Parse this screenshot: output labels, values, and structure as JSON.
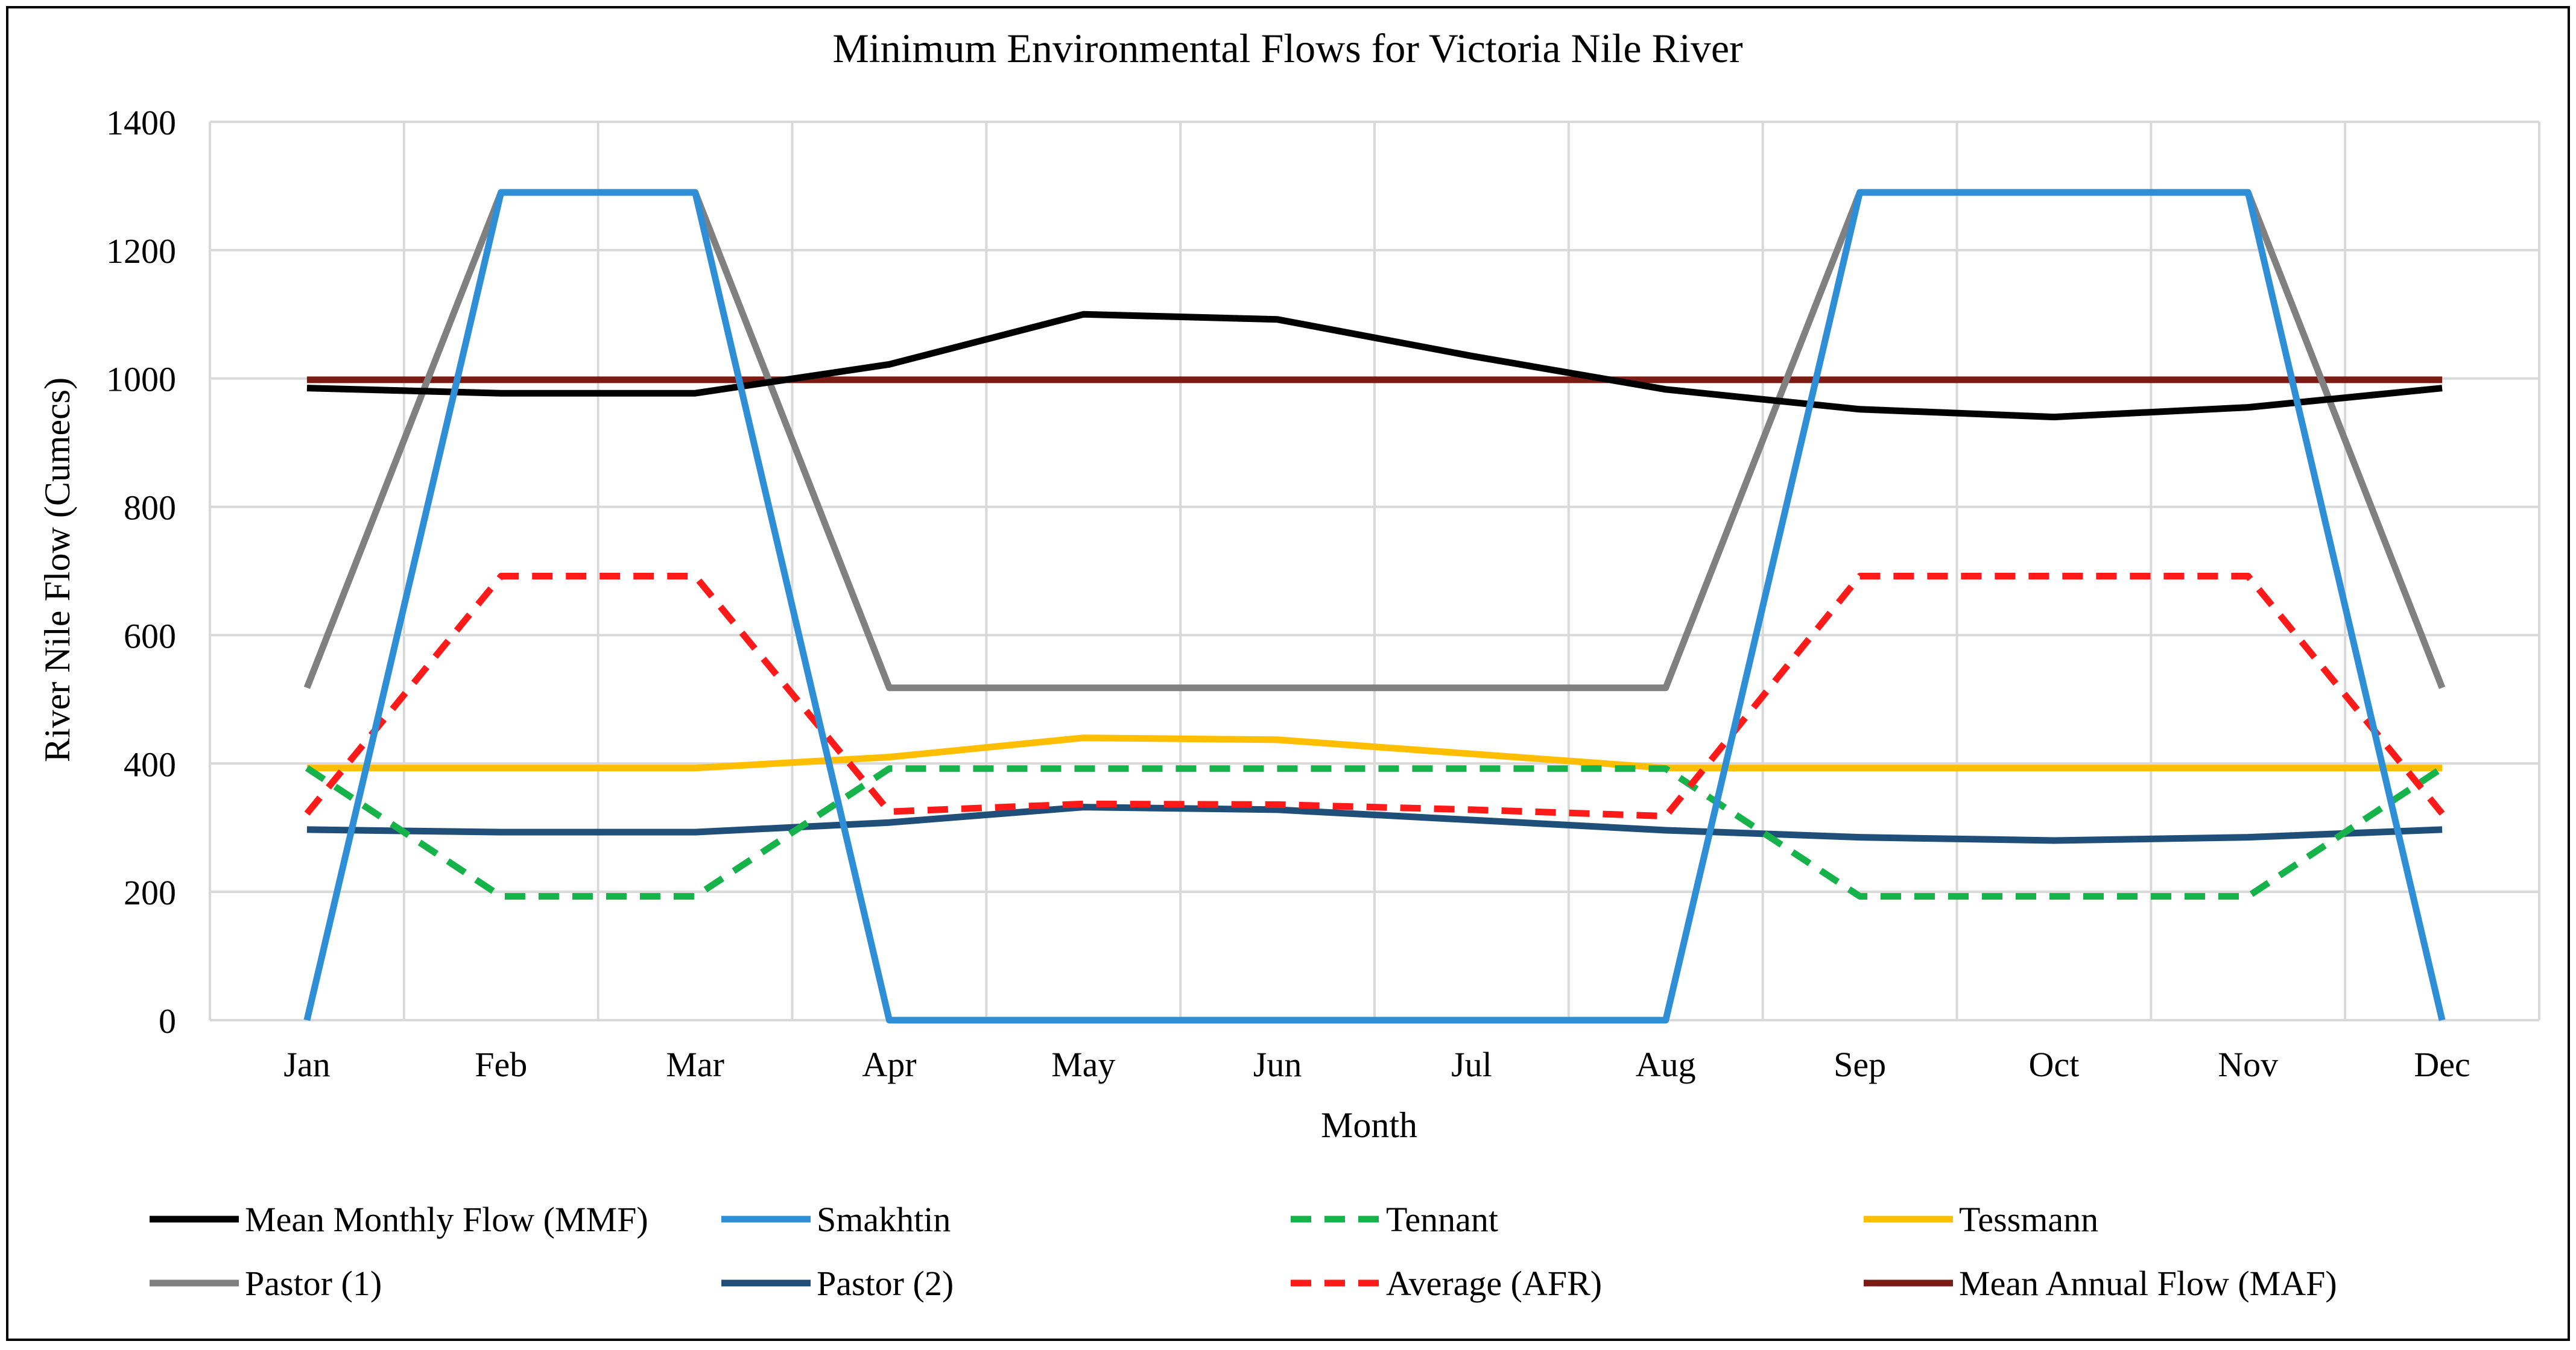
{
  "chart_data": {
    "type": "line",
    "title": "Minimum Environmental Flows for Victoria Nile River",
    "xlabel": "Month",
    "ylabel": "River Nile Flow (Cumecs)",
    "ylim": [
      0,
      1400
    ],
    "yticks": [
      0,
      200,
      400,
      600,
      800,
      1000,
      1200,
      1400
    ],
    "grid": "vertical and horizontal",
    "legend_position": "bottom",
    "categories": [
      "Jan",
      "Feb",
      "Mar",
      "Apr",
      "May",
      "Jun",
      "Jul",
      "Aug",
      "Sep",
      "Oct",
      "Nov",
      "Dec"
    ],
    "series": [
      {
        "name": "Mean Monthly Flow (MMF)",
        "color": "#000000",
        "dash": "solid",
        "values": [
          985,
          977,
          977,
          1022,
          1100,
          1092,
          1035,
          983,
          952,
          940,
          955,
          985
        ]
      },
      {
        "name": "Smakhtin",
        "color": "#2f8fd6",
        "dash": "solid",
        "values": [
          0,
          1290,
          1290,
          0,
          0,
          0,
          0,
          0,
          1290,
          1290,
          1290,
          0
        ]
      },
      {
        "name": "Tennant",
        "color": "#16b34a",
        "dash": "dashed",
        "values": [
          393,
          193,
          193,
          392,
          392,
          392,
          392,
          392,
          193,
          193,
          193,
          393
        ]
      },
      {
        "name": "Tessmann",
        "color": "#ffbf00",
        "dash": "solid",
        "values": [
          393,
          393,
          393,
          410,
          440,
          437,
          415,
          393,
          393,
          393,
          393,
          393
        ]
      },
      {
        "name": "Pastor (1)",
        "color": "#808080",
        "dash": "solid",
        "values": [
          518,
          1290,
          1290,
          518,
          518,
          518,
          518,
          518,
          1290,
          1290,
          1290,
          518
        ]
      },
      {
        "name": "Pastor (2)",
        "color": "#1f4e79",
        "dash": "solid",
        "values": [
          297,
          293,
          293,
          308,
          332,
          328,
          312,
          296,
          285,
          280,
          285,
          297
        ]
      },
      {
        "name": "Average (AFR)",
        "color": "#ff1a1a",
        "dash": "dashed",
        "values": [
          322,
          692,
          692,
          325,
          337,
          336,
          328,
          318,
          692,
          692,
          692,
          322
        ]
      },
      {
        "name": "Mean Annual Flow (MAF)",
        "color": "#7b1c14",
        "dash": "solid",
        "values": [
          998,
          998,
          998,
          998,
          998,
          998,
          998,
          998,
          998,
          998,
          998,
          998
        ]
      }
    ]
  }
}
